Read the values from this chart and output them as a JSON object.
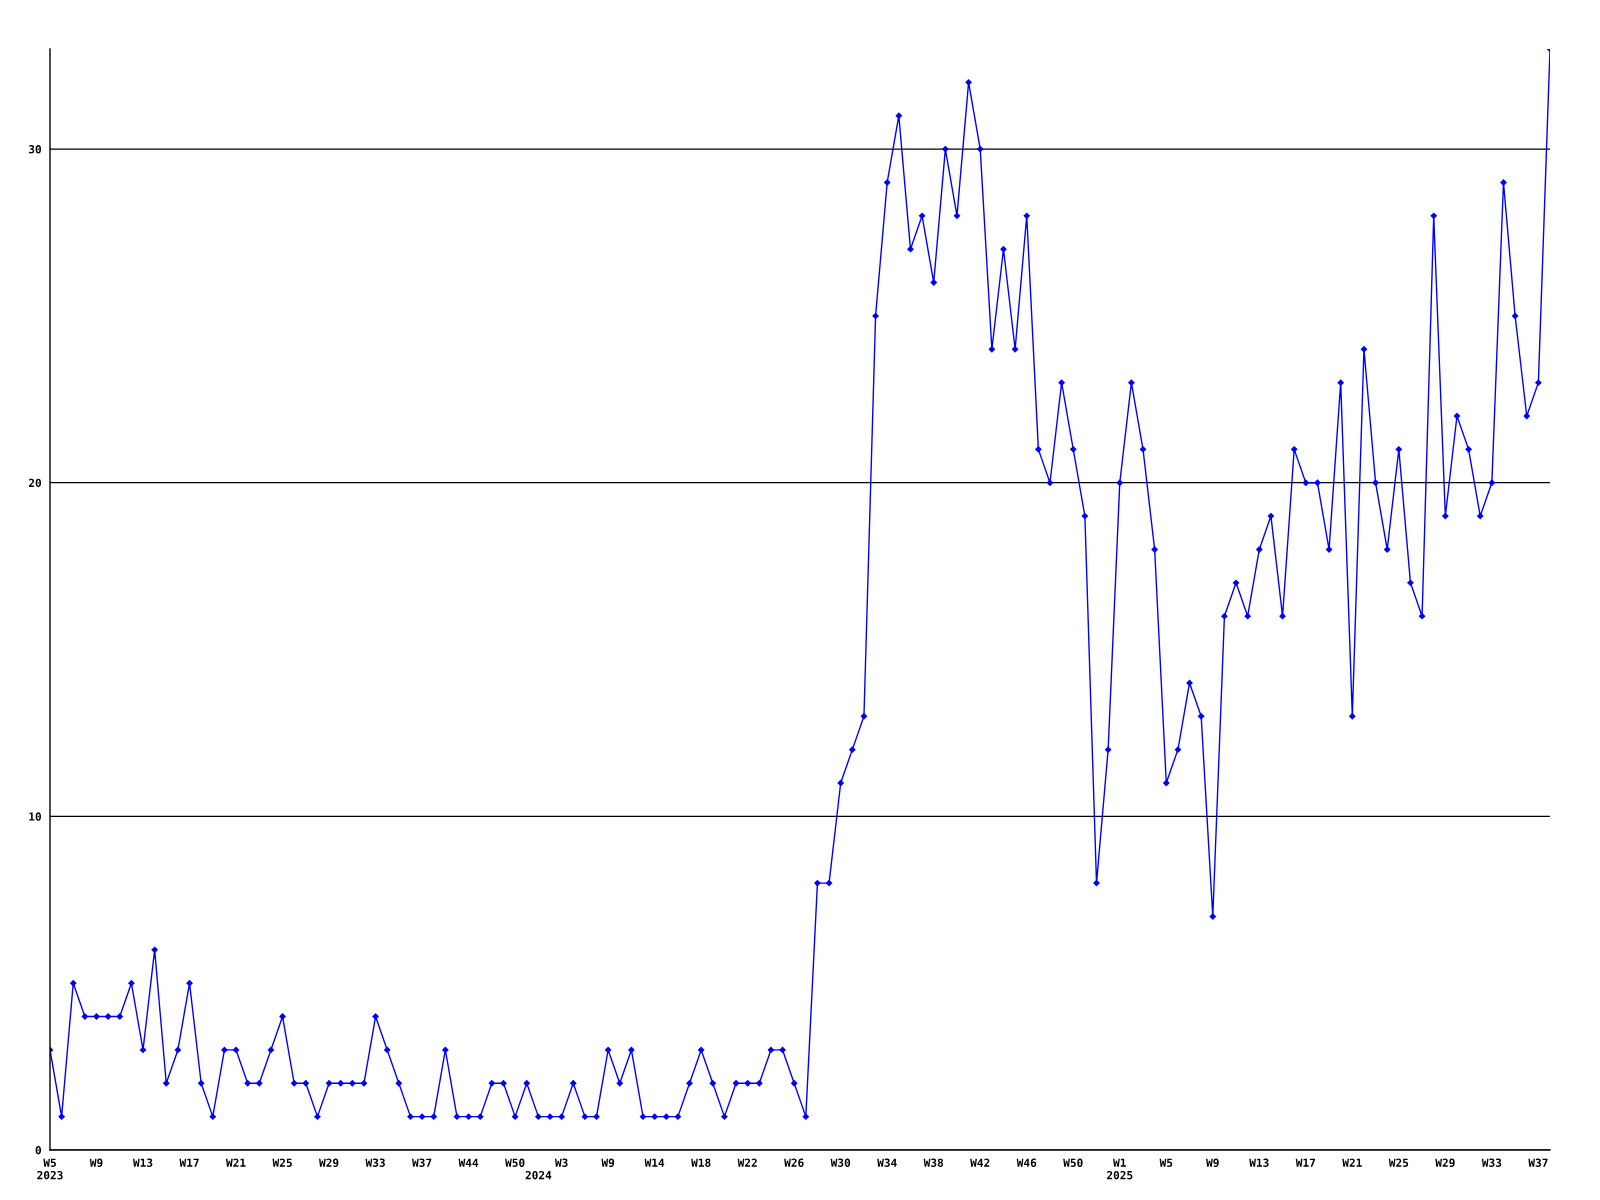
{
  "chart_data": {
    "type": "line",
    "categories": [
      "W5\n2023",
      null,
      null,
      null,
      "W9",
      null,
      null,
      null,
      "W13",
      null,
      null,
      null,
      "W17",
      null,
      null,
      null,
      "W21",
      null,
      null,
      null,
      "W25",
      null,
      null,
      null,
      "W29",
      null,
      null,
      null,
      "W33",
      null,
      null,
      null,
      "W37",
      null,
      null,
      null,
      "W44",
      null,
      null,
      null,
      "W50",
      null,
      "\n2024",
      null,
      "W3",
      null,
      null,
      null,
      "W9",
      null,
      null,
      null,
      "W14",
      null,
      null,
      null,
      "W18",
      null,
      null,
      null,
      "W22",
      null,
      null,
      null,
      "W26",
      null,
      null,
      null,
      "W30",
      null,
      null,
      null,
      "W34",
      null,
      null,
      null,
      "W38",
      null,
      null,
      null,
      "W42",
      null,
      null,
      null,
      "W46",
      null,
      null,
      null,
      "W50",
      null,
      null,
      null,
      "W1\n2025",
      null,
      null,
      null,
      "W5",
      null,
      null,
      null,
      "W9",
      null,
      null,
      null,
      "W13",
      null,
      null,
      null,
      "W17",
      null,
      null,
      null,
      "W21",
      null,
      null,
      null,
      "W25",
      null,
      null,
      null,
      "W29",
      null,
      null,
      null,
      "W33",
      null,
      null,
      null,
      "W37",
      null
    ],
    "series": [
      {
        "color": "#0000ff",
        "values": [
          3,
          1,
          5,
          4,
          4,
          4,
          4,
          5,
          3,
          6,
          2,
          3,
          5,
          2,
          1,
          3,
          3,
          2,
          2,
          3,
          4,
          2,
          2,
          1,
          2,
          2,
          2,
          2,
          4,
          3,
          2,
          1,
          1,
          1,
          3,
          1,
          1,
          1,
          2,
          2,
          1,
          2,
          1,
          1,
          1,
          2,
          1,
          1,
          3,
          2,
          3,
          1,
          1,
          1,
          1,
          2,
          3,
          2,
          1,
          2,
          2,
          2,
          3,
          3,
          2,
          1,
          8,
          8,
          11,
          12,
          13,
          25,
          29,
          31,
          27,
          28,
          26,
          30,
          28,
          32,
          30,
          24,
          27,
          24,
          28,
          21,
          20,
          23,
          21,
          19,
          8,
          12,
          20,
          23,
          21,
          18,
          11,
          12,
          14,
          13,
          7,
          16,
          17,
          16,
          18,
          19,
          16,
          21,
          20,
          20,
          18,
          23,
          13,
          24,
          20,
          18,
          21,
          17,
          16,
          28,
          19,
          22,
          21,
          19,
          20,
          29,
          25,
          22,
          23,
          33
        ]
      }
    ],
    "ylim": [
      0,
      33
    ],
    "yticks": [
      0,
      10,
      20,
      30
    ],
    "grid": "y",
    "marker": "diamond",
    "line_style": "solid"
  }
}
